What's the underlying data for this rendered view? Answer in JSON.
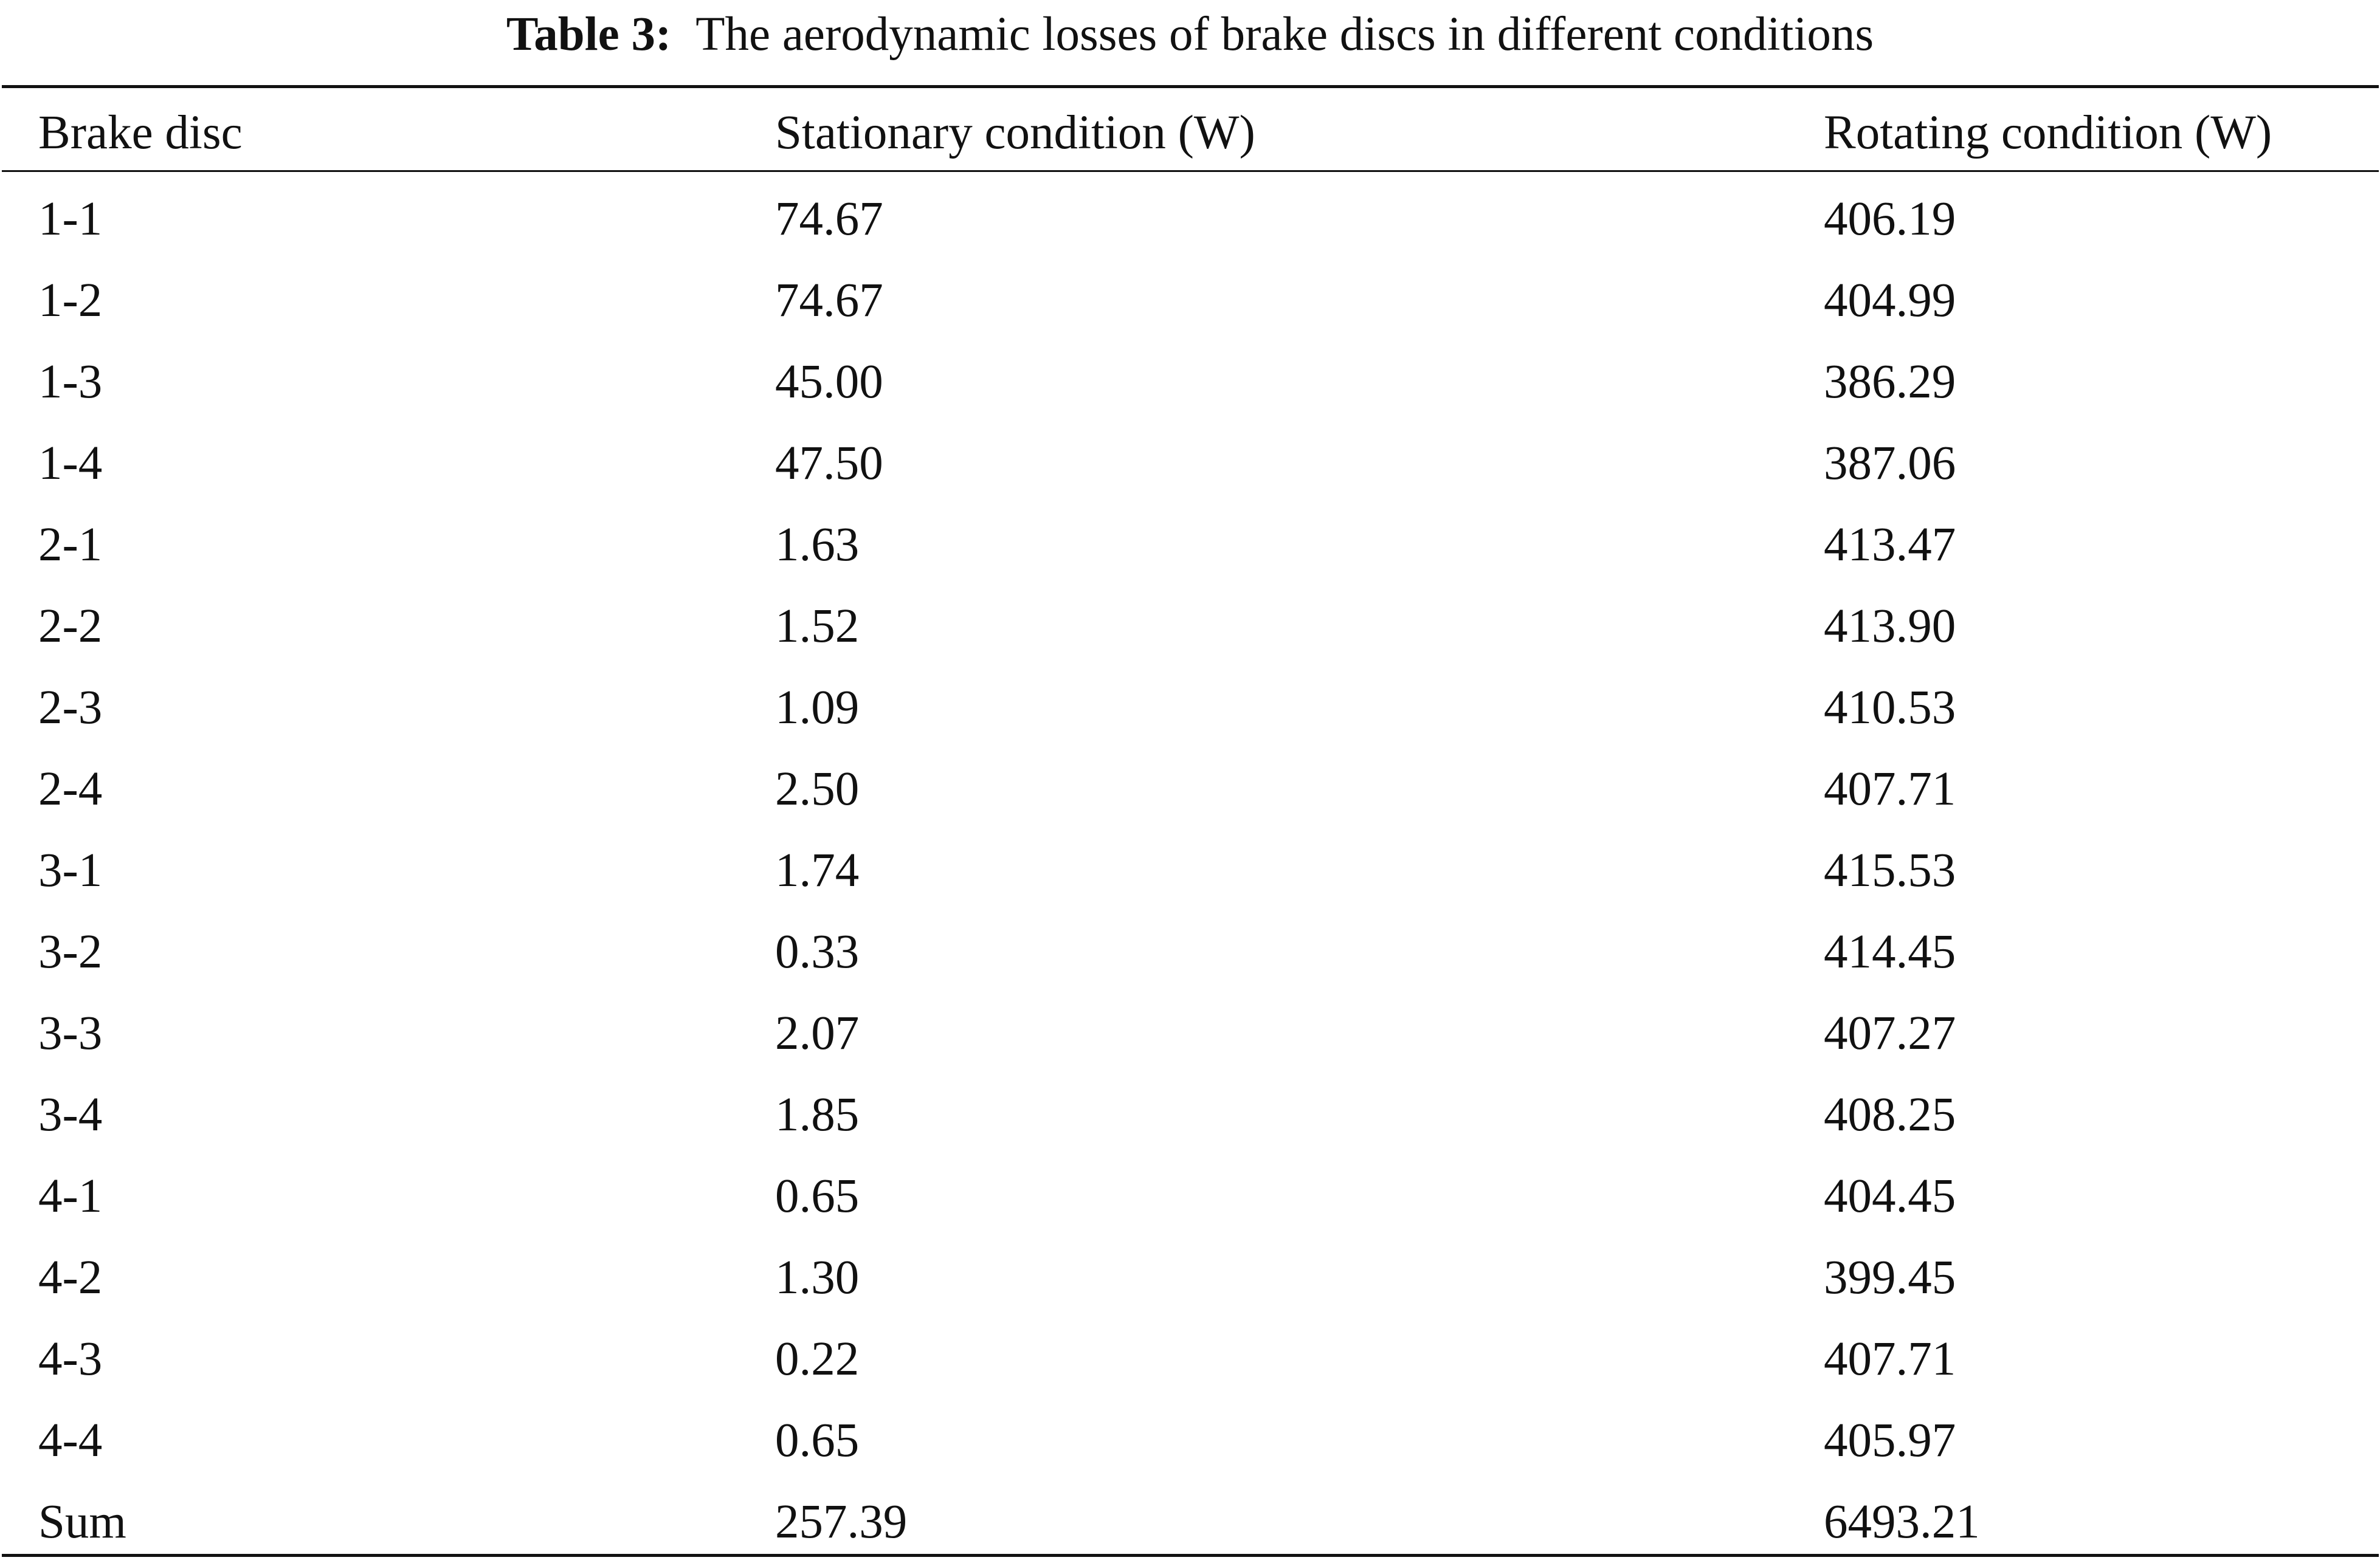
{
  "caption": {
    "label": "Table 3:",
    "text": "The aerodynamic losses of brake discs in different conditions"
  },
  "table": {
    "headers": [
      "Brake disc",
      "Stationary condition (W)",
      "Rotating condition (W)"
    ],
    "rows": [
      [
        "1-1",
        "74.67",
        "406.19"
      ],
      [
        "1-2",
        "74.67",
        "404.99"
      ],
      [
        "1-3",
        "45.00",
        "386.29"
      ],
      [
        "1-4",
        "47.50",
        "387.06"
      ],
      [
        "2-1",
        "1.63",
        "413.47"
      ],
      [
        "2-2",
        "1.52",
        "413.90"
      ],
      [
        "2-3",
        "1.09",
        "410.53"
      ],
      [
        "2-4",
        "2.50",
        "407.71"
      ],
      [
        "3-1",
        "1.74",
        "415.53"
      ],
      [
        "3-2",
        "0.33",
        "414.45"
      ],
      [
        "3-3",
        "2.07",
        "407.27"
      ],
      [
        "3-4",
        "1.85",
        "408.25"
      ],
      [
        "4-1",
        "0.65",
        "404.45"
      ],
      [
        "4-2",
        "1.30",
        "399.45"
      ],
      [
        "4-3",
        "0.22",
        "407.71"
      ],
      [
        "4-4",
        "0.65",
        "405.97"
      ],
      [
        "Sum",
        "257.39",
        "6493.21"
      ]
    ]
  }
}
